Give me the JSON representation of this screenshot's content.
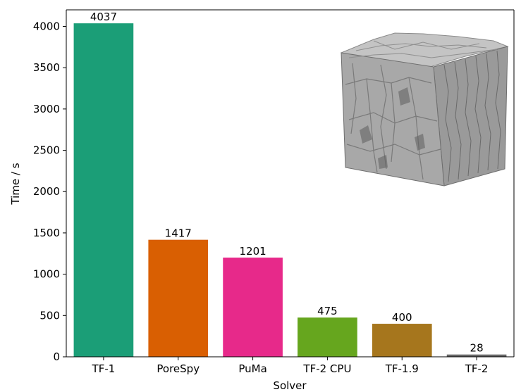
{
  "chart_data": {
    "type": "bar",
    "title": "",
    "xlabel": "Solver",
    "ylabel": "Time / s",
    "categories": [
      "TF-1",
      "PoreSpy",
      "PuMa",
      "TF-2 CPU",
      "TF-1.9",
      "TF-2"
    ],
    "values": [
      4037,
      1417,
      1201,
      475,
      400,
      28
    ],
    "colors": [
      "#1b9e77",
      "#d95f02",
      "#e7298a",
      "#66a61e",
      "#a6761d",
      "#666666"
    ],
    "data_labels": [
      "4037",
      "1417",
      "1201",
      "475",
      "400",
      "28"
    ],
    "ylim": [
      0,
      4200
    ],
    "yticks": [
      0,
      500,
      1000,
      1500,
      2000,
      2500,
      3000,
      3500,
      4000
    ],
    "ytick_labels": [
      "0",
      "500",
      "1000",
      "1500",
      "2000",
      "2500",
      "3000",
      "3500",
      "4000"
    ],
    "grid": false,
    "legend": "none",
    "inset_image": "grey porous foam cube rendering (top-right)"
  }
}
